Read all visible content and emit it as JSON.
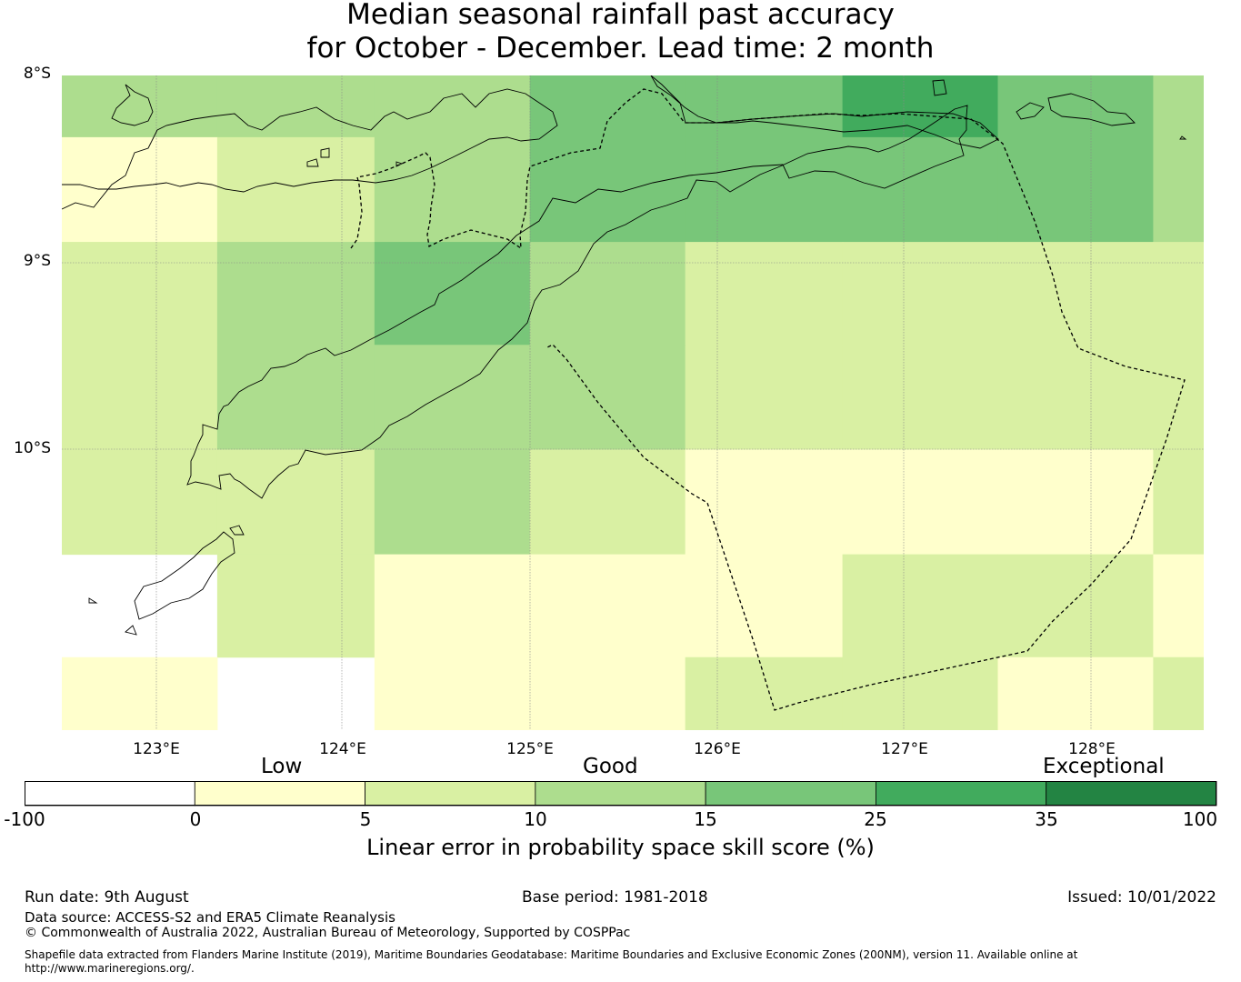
{
  "title": {
    "line1": "Median seasonal rainfall past accuracy",
    "line2": "for October - December. Lead time: 2 month"
  },
  "map": {
    "lat_labels": [
      "8°S",
      "9°S",
      "10°S"
    ],
    "lon_labels": [
      "123°E",
      "124°E",
      "125°E",
      "126°E",
      "127°E",
      "128°E"
    ],
    "columns_lon": [
      122.5,
      123.33,
      124.17,
      125.0,
      125.83,
      126.67,
      127.5,
      128.33,
      128.6
    ],
    "rows_lat": [
      -8.0,
      -8.33,
      -8.89,
      -9.44,
      -10.0,
      -10.56,
      -11.11,
      -11.5
    ],
    "skill_grid": [
      [
        2,
        2,
        2,
        3,
        3,
        4,
        3,
        2
      ],
      [
        0,
        1,
        2,
        3,
        3,
        3,
        3,
        2
      ],
      [
        1,
        2,
        3,
        2,
        1,
        1,
        1,
        1
      ],
      [
        1,
        2,
        2,
        2,
        1,
        1,
        1,
        1
      ],
      [
        1,
        1,
        2,
        1,
        0,
        0,
        0,
        1
      ],
      [
        -1,
        1,
        0,
        0,
        0,
        1,
        1,
        0
      ],
      [
        0,
        -1,
        0,
        0,
        1,
        1,
        0,
        1
      ]
    ],
    "nan_cells": [
      [
        5,
        0
      ],
      [
        6,
        1
      ]
    ],
    "colors": [
      "#ffffcc",
      "#d9f0a3",
      "#addd8e",
      "#78c679",
      "#41ab5d",
      "#238443"
    ]
  },
  "colorbar": {
    "category_labels": [
      "Low",
      "Good",
      "Exceptional"
    ],
    "ticks": [
      "-100",
      "0",
      "5",
      "10",
      "15",
      "25",
      "35",
      "100"
    ],
    "segment_colors": [
      "#ffffff",
      "#ffffcc",
      "#d9f0a3",
      "#addd8e",
      "#78c679",
      "#41ab5d",
      "#238443"
    ],
    "title": "Linear error in probability space skill score (%)"
  },
  "footer": {
    "run_date": "Run date: 9th August",
    "base_period": "Base period: 1981-2018",
    "issued": "Issued: 10/01/2022",
    "data_source": "Data source: ACCESS-S2 and ERA5 Climate Reanalysis",
    "copyright": "© Commonwealth of Australia 2022, Australian Bureau of Meteorology, Supported by COSPPac",
    "shapefile_note": "Shapefile data extracted from Flanders Marine Institute (2019), Maritime Boundaries Geodatabase: Maritime Boundaries and Exclusive Economic Zones (200NM), version 11. Available online at http://www.marineregions.org/."
  }
}
